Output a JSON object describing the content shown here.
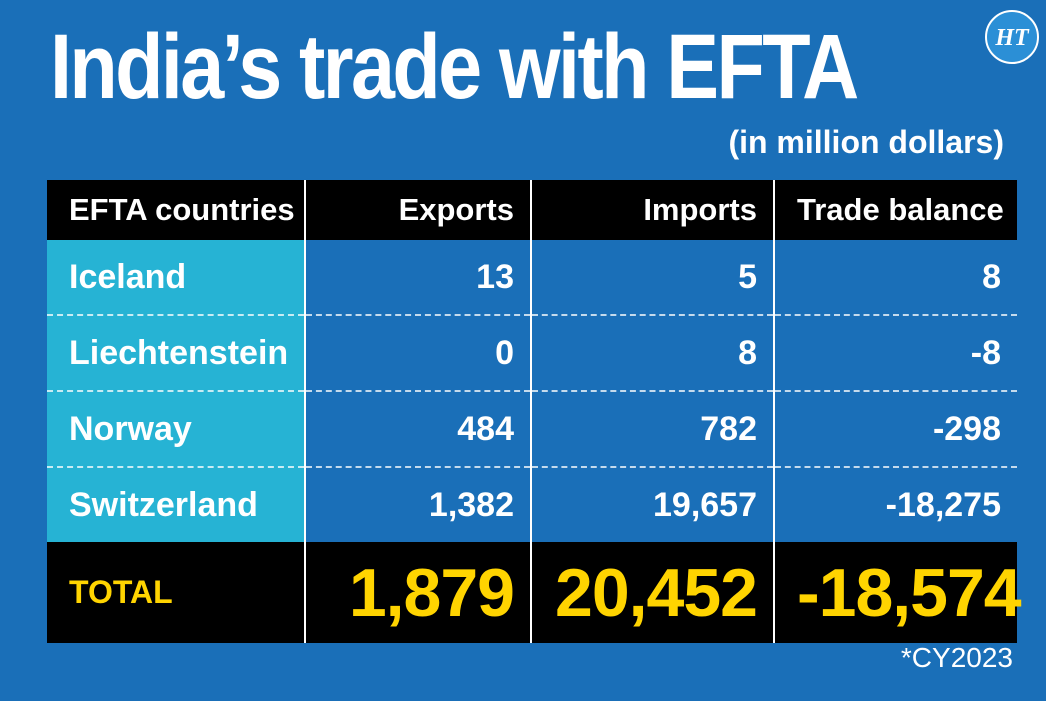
{
  "title": "India’s trade with EFTA",
  "subtitle": "(in million dollars)",
  "logo_text": "HT",
  "note": "*CY2023",
  "colors": {
    "background": "#1a6fb8",
    "country_column": "#26b3d4",
    "header_bg": "#000000",
    "total_text": "#ffd400",
    "text": "#ffffff"
  },
  "chart_data": {
    "type": "table",
    "columns": [
      "EFTA countries",
      "Exports",
      "Imports",
      "Trade balance"
    ],
    "rows": [
      {
        "country": "Iceland",
        "exports": "13",
        "imports": "5",
        "balance": "8"
      },
      {
        "country": "Liechtenstein",
        "exports": "0",
        "imports": "8",
        "balance": "-8"
      },
      {
        "country": "Norway",
        "exports": "484",
        "imports": "782",
        "balance": "-298"
      },
      {
        "country": "Switzerland",
        "exports": "1,382",
        "imports": "19,657",
        "balance": "-18,275"
      }
    ],
    "total": {
      "label": "TOTAL",
      "exports": "1,879",
      "imports": "20,452",
      "balance": "-18,574"
    }
  }
}
